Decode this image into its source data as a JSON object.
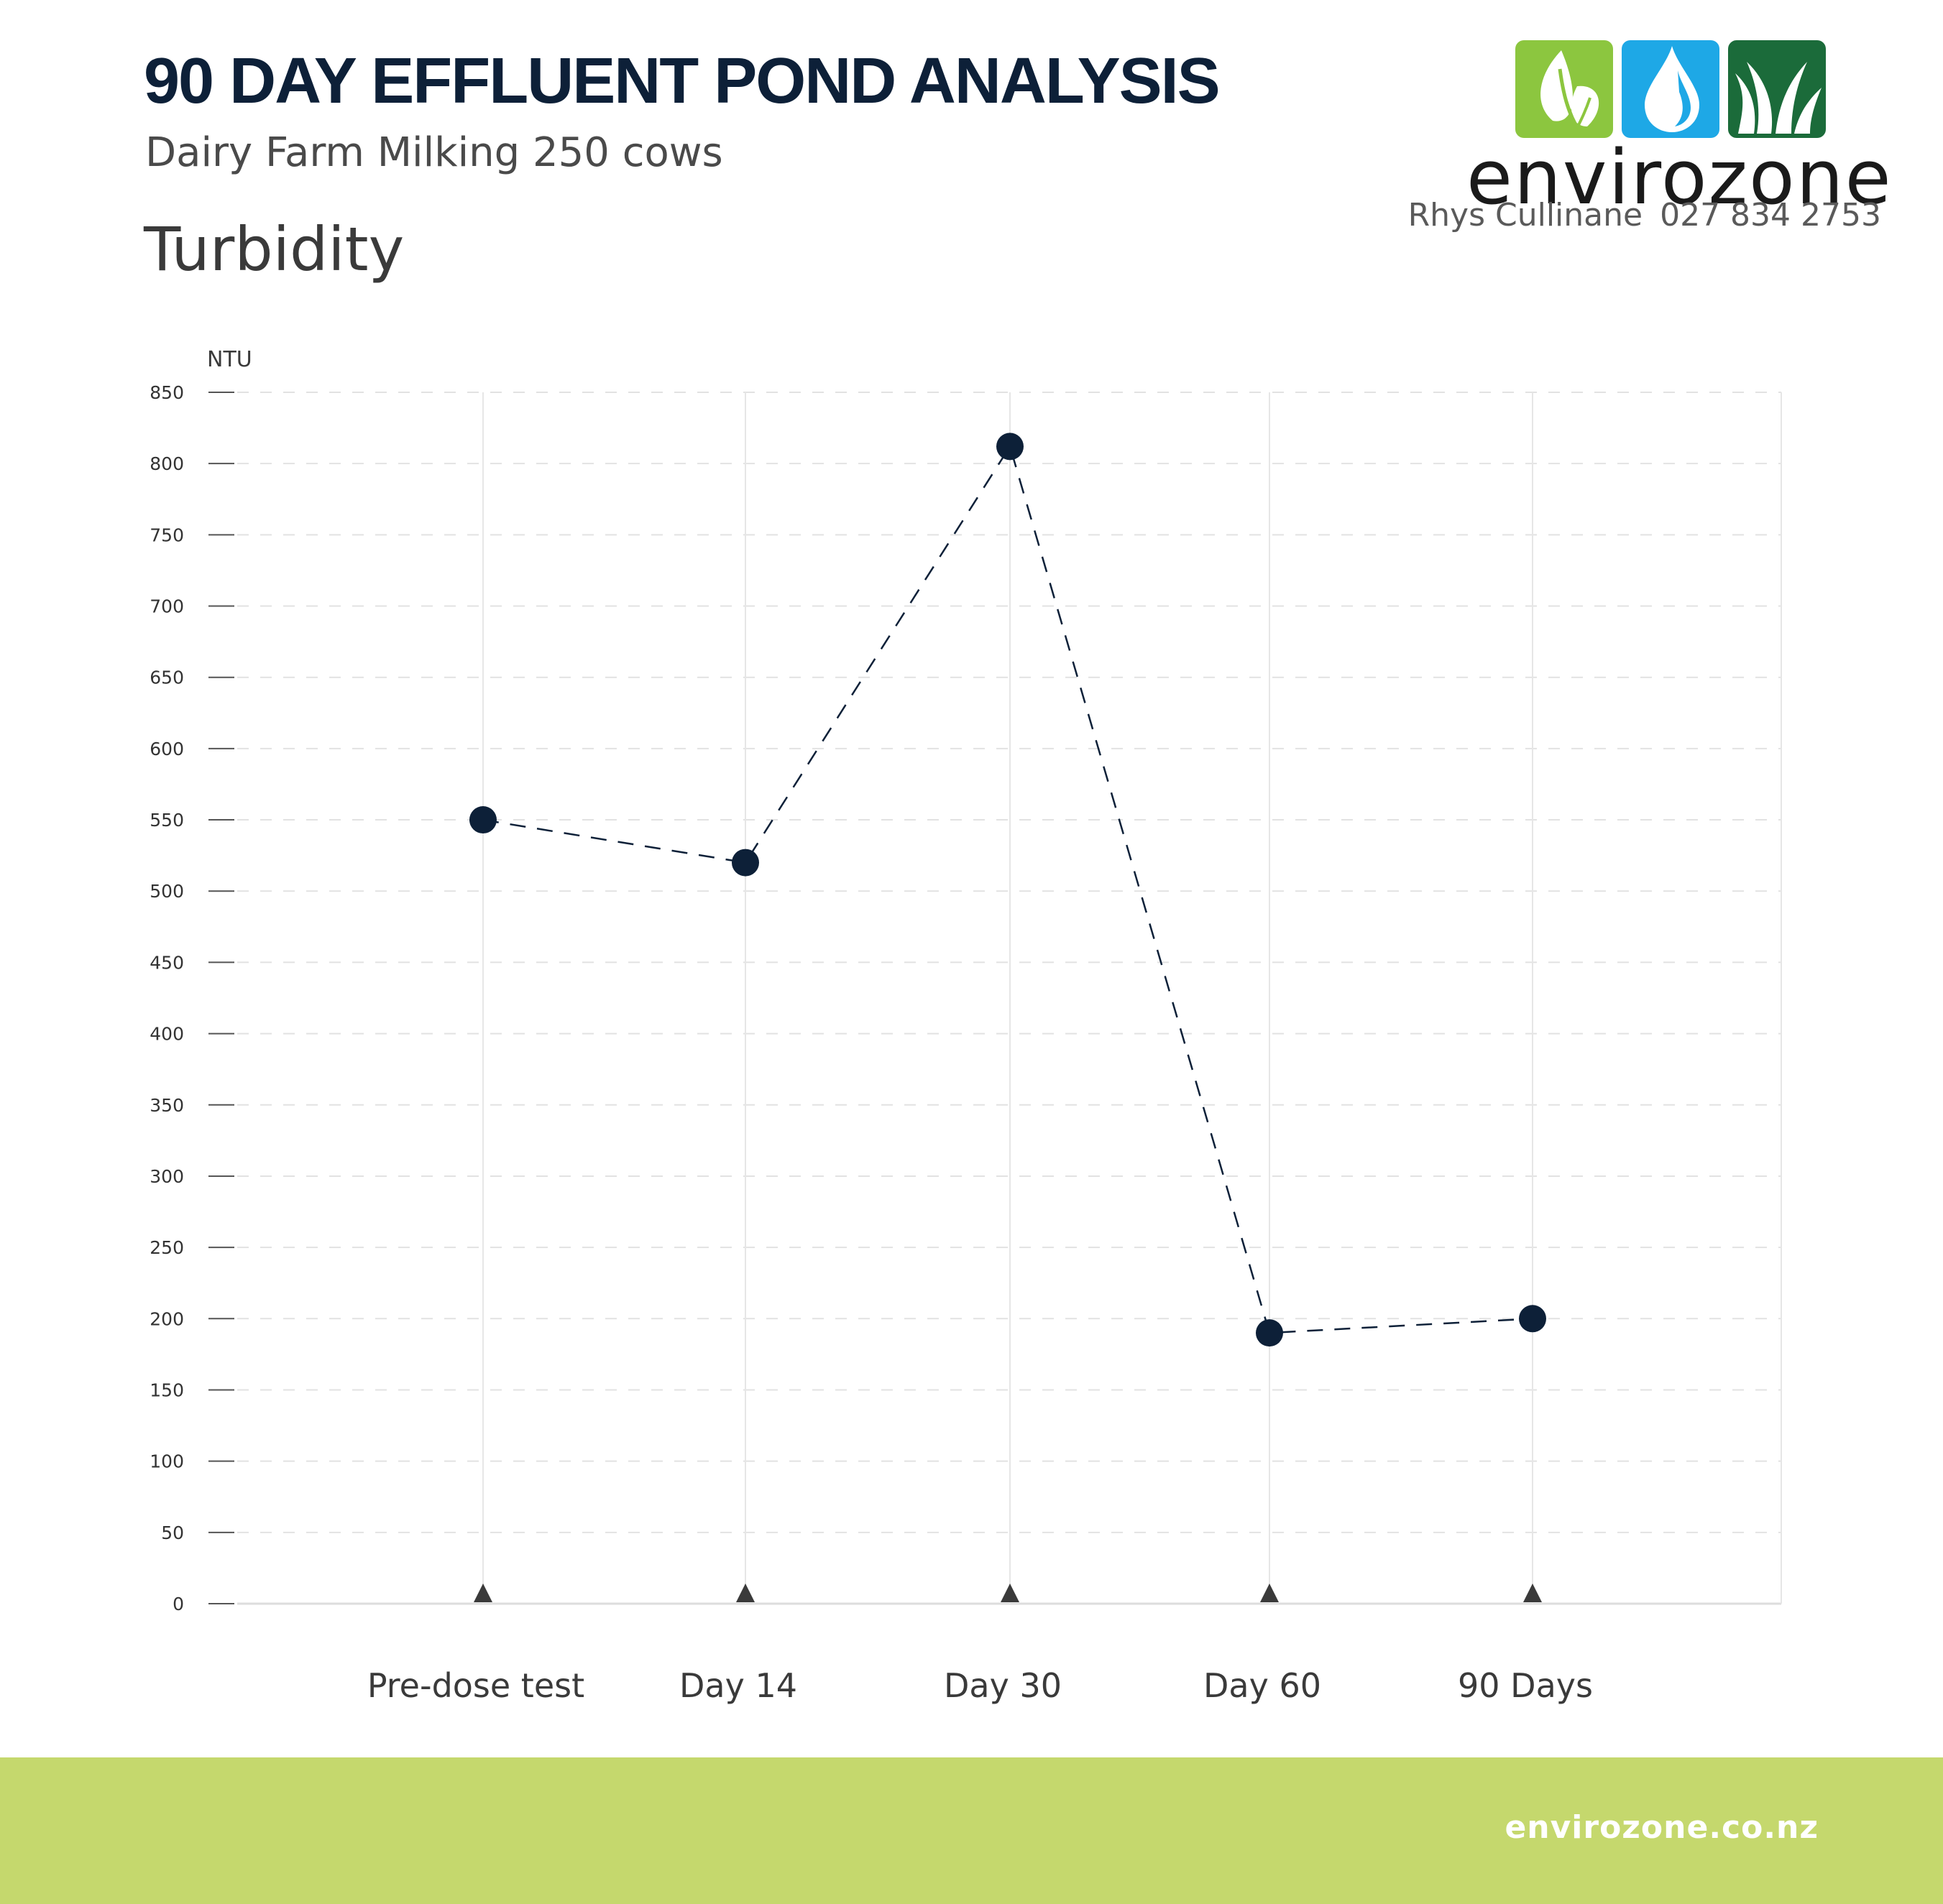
{
  "header": {
    "title": "90 DAY EFFLUENT POND ANALYSIS",
    "subtitle": "Dairy Farm Milking 250 cows",
    "section": "Turbidity"
  },
  "brand": {
    "name": "envirozone",
    "contact_name": "Rhys Cullinane",
    "contact_phone": "027 834 2753",
    "icons": [
      "leaf-icon",
      "water-drop-icon",
      "grass-icon"
    ],
    "colors": {
      "leaf": "#8cc63f",
      "water": "#1ea8e6",
      "grass": "#1b6b3a"
    }
  },
  "footer": {
    "url": "envirozone.co.nz"
  },
  "chart_data": {
    "type": "line",
    "categories": [
      "Pre-dose test",
      "Day 14",
      "Day 30",
      "Day 60",
      "90 Days"
    ],
    "series": [
      {
        "values": [
          550,
          520,
          812,
          190,
          200
        ]
      }
    ],
    "ylabel": "NTU",
    "ylim": [
      0,
      850
    ],
    "yticks": [
      0,
      50,
      100,
      150,
      200,
      250,
      300,
      350,
      400,
      450,
      500,
      550,
      600,
      650,
      700,
      750,
      800,
      850
    ],
    "grid": true,
    "line_style": "dashed",
    "marker_color": "#0d2038",
    "line_color": "#0d2038"
  }
}
